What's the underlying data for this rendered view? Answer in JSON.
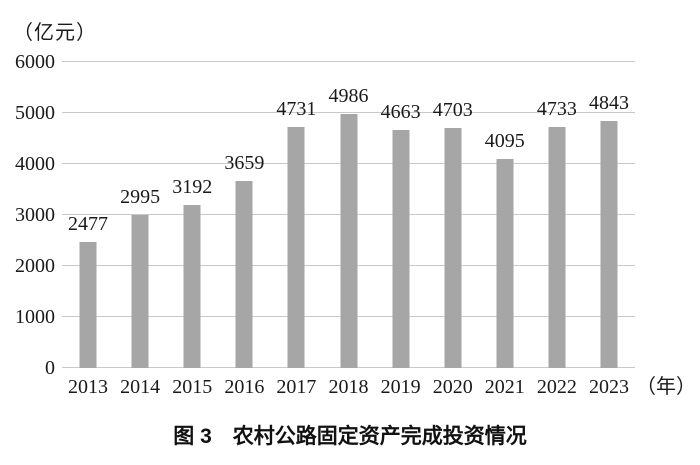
{
  "chart_data": {
    "type": "bar",
    "title": "图 3　农村公路固定资产完成投资情况",
    "ylabel": "（亿元）",
    "xlabel": "（年）",
    "categories": [
      "2013",
      "2014",
      "2015",
      "2016",
      "2017",
      "2018",
      "2019",
      "2020",
      "2021",
      "2022",
      "2023"
    ],
    "values": [
      2477,
      2995,
      3192,
      3659,
      4731,
      4986,
      4663,
      4703,
      4095,
      4733,
      4843
    ],
    "ylim": [
      0,
      6000
    ],
    "yticks": [
      0,
      1000,
      2000,
      3000,
      4000,
      5000,
      6000
    ],
    "grid": true,
    "legend": false,
    "bar_color": "#a6a6a6",
    "gridline_color": "#c9c9c9",
    "text_color": "#1a1a1a"
  }
}
